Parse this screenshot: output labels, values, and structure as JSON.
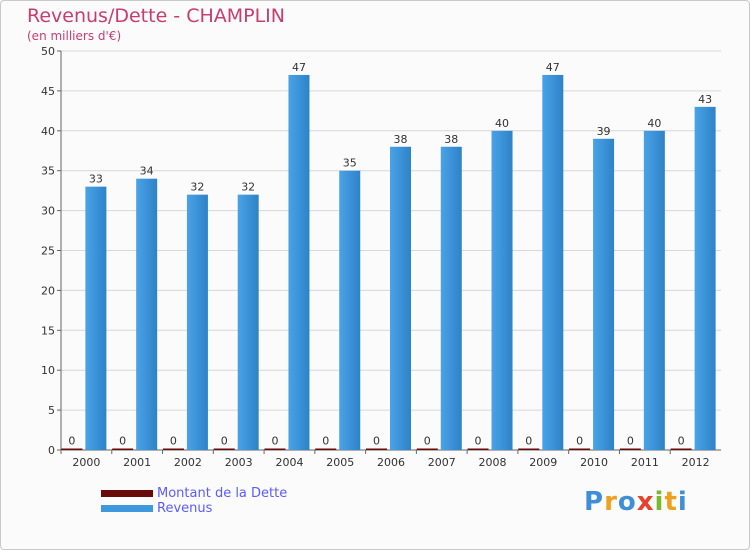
{
  "title": "Revenus/Dette - CHAMPLIN",
  "subtitle": "(en milliers d'€)",
  "logo_text": "Proxiti",
  "colors": {
    "title": "#c83c6e",
    "dette": "#6b0a0a",
    "revenus": "#3f97dc",
    "revenus_dark": "#2778b8",
    "grid": "#d8d8d8",
    "legend_text": "#5b5bff"
  },
  "legend": [
    {
      "label": "Montant de la Dette",
      "color_key": "dette"
    },
    {
      "label": "Revenus",
      "color_key": "revenus"
    }
  ],
  "chart_data": {
    "type": "bar",
    "title": "Revenus/Dette - CHAMPLIN",
    "subtitle": "(en milliers d'€)",
    "categories": [
      "2000",
      "2001",
      "2002",
      "2003",
      "2004",
      "2005",
      "2006",
      "2007",
      "2008",
      "2009",
      "2010",
      "2011",
      "2012"
    ],
    "series": [
      {
        "name": "Montant de la Dette",
        "values": [
          0,
          0,
          0,
          0,
          0,
          0,
          0,
          0,
          0,
          0,
          0,
          0,
          0
        ]
      },
      {
        "name": "Revenus",
        "values": [
          33,
          34,
          32,
          32,
          47,
          35,
          38,
          38,
          40,
          47,
          39,
          40,
          43
        ]
      }
    ],
    "ylim": [
      0,
      50
    ],
    "yticks": [
      0,
      5,
      10,
      15,
      20,
      25,
      30,
      35,
      40,
      45,
      50
    ],
    "grid": true,
    "legend_position": "bottom-left"
  }
}
